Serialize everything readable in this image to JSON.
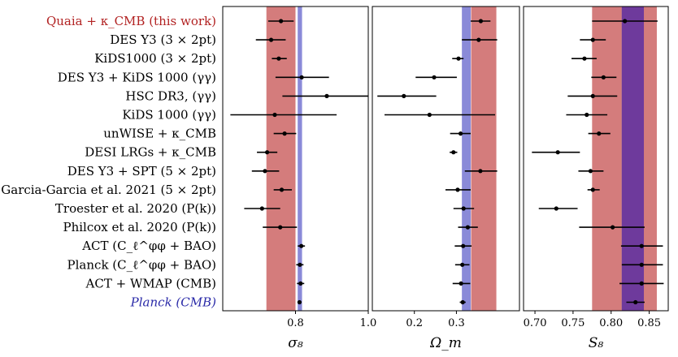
{
  "chart_data": {
    "type": "errorbar",
    "title": "",
    "highlight_color": "#b22222",
    "planck_color": "#2a2aa8",
    "band_red": "#d47c7c",
    "band_blue": "#8a8ad8",
    "band_overlap": "#6e3a9c",
    "rows": [
      {
        "label": "Quaia + κ_CMB (this work)",
        "style": "highlight"
      },
      {
        "label": "DES Y3 (3 × 2pt)",
        "style": "normal"
      },
      {
        "label": "KiDS1000 (3 × 2pt)",
        "style": "normal"
      },
      {
        "label": "DES Y3 + KiDS 1000 (γγ)",
        "style": "normal"
      },
      {
        "label": "HSC DR3, (γγ)",
        "style": "normal"
      },
      {
        "label": "KiDS 1000 (γγ)",
        "style": "normal"
      },
      {
        "label": "unWISE + κ_CMB",
        "style": "normal"
      },
      {
        "label": "DESI LRGs + κ_CMB",
        "style": "normal"
      },
      {
        "label": "DES Y3 + SPT (5 × 2pt)",
        "style": "normal"
      },
      {
        "label": "Garcia-Garcia et al. 2021 (5 × 2pt)",
        "style": "normal"
      },
      {
        "label": "Troester et al. 2020 (P(k))",
        "style": "normal"
      },
      {
        "label": "Philcox et al. 2020 (P(k))",
        "style": "normal"
      },
      {
        "label": "ACT (C_ℓ^φφ + BAO)",
        "style": "normal"
      },
      {
        "label": "Planck (C_ℓ^φφ + BAO)",
        "style": "normal"
      },
      {
        "label": "ACT + WMAP (CMB)",
        "style": "normal"
      },
      {
        "label": "Planck (CMB)",
        "style": "planck"
      }
    ],
    "panels": [
      {
        "xlabel": "σ₈",
        "xlim": [
          0.6,
          1.0
        ],
        "ticks": [
          0.8,
          1.0
        ],
        "tick_labels": [
          "0.8",
          "1.0"
        ],
        "band_red": [
          0.72,
          0.8
        ],
        "band_blue": [
          0.806,
          0.818
        ],
        "points": [
          {
            "v": 0.76,
            "lo": 0.725,
            "hi": 0.795
          },
          {
            "v": 0.733,
            "lo": 0.691,
            "hi": 0.773
          },
          {
            "v": 0.754,
            "lo": 0.735,
            "hi": 0.776
          },
          {
            "v": 0.817,
            "lo": 0.745,
            "hi": 0.892
          },
          {
            "v": 0.886,
            "lo": 0.764,
            "hi": 1.0
          },
          {
            "v": 0.743,
            "lo": 0.621,
            "hi": 0.913
          },
          {
            "v": 0.77,
            "lo": 0.74,
            "hi": 0.802
          },
          {
            "v": 0.722,
            "lo": 0.694,
            "hi": 0.75
          },
          {
            "v": 0.716,
            "lo": 0.68,
            "hi": 0.755
          },
          {
            "v": 0.762,
            "lo": 0.74,
            "hi": 0.79
          },
          {
            "v": 0.708,
            "lo": 0.659,
            "hi": 0.758
          },
          {
            "v": 0.758,
            "lo": 0.71,
            "hi": 0.804
          },
          {
            "v": 0.816,
            "lo": 0.806,
            "hi": 0.826
          },
          {
            "v": 0.812,
            "lo": 0.802,
            "hi": 0.822
          },
          {
            "v": 0.814,
            "lo": 0.804,
            "hi": 0.824
          },
          {
            "v": 0.811,
            "lo": 0.807,
            "hi": 0.815
          }
        ]
      },
      {
        "xlabel": "Ω_m",
        "xlim": [
          0.1,
          0.45
        ],
        "ticks": [
          0.2,
          0.3
        ],
        "tick_labels": [
          "0.2",
          "0.3"
        ],
        "band_red": [
          0.335,
          0.395
        ],
        "band_blue": [
          0.313,
          0.334
        ],
        "points": [
          {
            "v": 0.358,
            "lo": 0.334,
            "hi": 0.381
          },
          {
            "v": 0.353,
            "lo": 0.313,
            "hi": 0.397
          },
          {
            "v": 0.305,
            "lo": 0.29,
            "hi": 0.317
          },
          {
            "v": 0.247,
            "lo": 0.203,
            "hi": 0.301
          },
          {
            "v": 0.175,
            "lo": 0.112,
            "hi": 0.252
          },
          {
            "v": 0.236,
            "lo": 0.129,
            "hi": 0.392
          },
          {
            "v": 0.31,
            "lo": 0.285,
            "hi": 0.334
          },
          {
            "v": 0.293,
            "lo": 0.284,
            "hi": 0.302
          },
          {
            "v": 0.357,
            "lo": 0.32,
            "hi": 0.397
          },
          {
            "v": 0.303,
            "lo": 0.274,
            "hi": 0.334
          },
          {
            "v": 0.317,
            "lo": 0.293,
            "hi": 0.342
          },
          {
            "v": 0.327,
            "lo": 0.304,
            "hi": 0.351
          },
          {
            "v": 0.316,
            "lo": 0.296,
            "hi": 0.336
          },
          {
            "v": 0.314,
            "lo": 0.297,
            "hi": 0.331
          },
          {
            "v": 0.311,
            "lo": 0.291,
            "hi": 0.333
          },
          {
            "v": 0.315,
            "lo": 0.308,
            "hi": 0.322
          }
        ]
      },
      {
        "xlabel": "S₈",
        "xlim": [
          0.685,
          0.875
        ],
        "ticks": [
          0.7,
          0.75,
          0.8,
          0.85
        ],
        "tick_labels": [
          "0.70",
          "0.75",
          "0.80",
          "0.85"
        ],
        "band_red": [
          0.775,
          0.86
        ],
        "band_blue": [
          0.814,
          0.843
        ],
        "points": [
          {
            "v": 0.818,
            "lo": 0.775,
            "hi": 0.861
          },
          {
            "v": 0.776,
            "lo": 0.759,
            "hi": 0.793
          },
          {
            "v": 0.765,
            "lo": 0.748,
            "hi": 0.781
          },
          {
            "v": 0.79,
            "lo": 0.774,
            "hi": 0.807
          },
          {
            "v": 0.776,
            "lo": 0.743,
            "hi": 0.808
          },
          {
            "v": 0.768,
            "lo": 0.741,
            "hi": 0.795
          },
          {
            "v": 0.784,
            "lo": 0.77,
            "hi": 0.799
          },
          {
            "v": 0.73,
            "lo": 0.696,
            "hi": 0.759
          },
          {
            "v": 0.773,
            "lo": 0.757,
            "hi": 0.79
          },
          {
            "v": 0.776,
            "lo": 0.769,
            "hi": 0.785
          },
          {
            "v": 0.728,
            "lo": 0.705,
            "hi": 0.756
          },
          {
            "v": 0.802,
            "lo": 0.758,
            "hi": 0.844
          },
          {
            "v": 0.84,
            "lo": 0.813,
            "hi": 0.868
          },
          {
            "v": 0.84,
            "lo": 0.814,
            "hi": 0.868
          },
          {
            "v": 0.84,
            "lo": 0.811,
            "hi": 0.869
          },
          {
            "v": 0.832,
            "lo": 0.82,
            "hi": 0.844
          }
        ]
      }
    ]
  }
}
